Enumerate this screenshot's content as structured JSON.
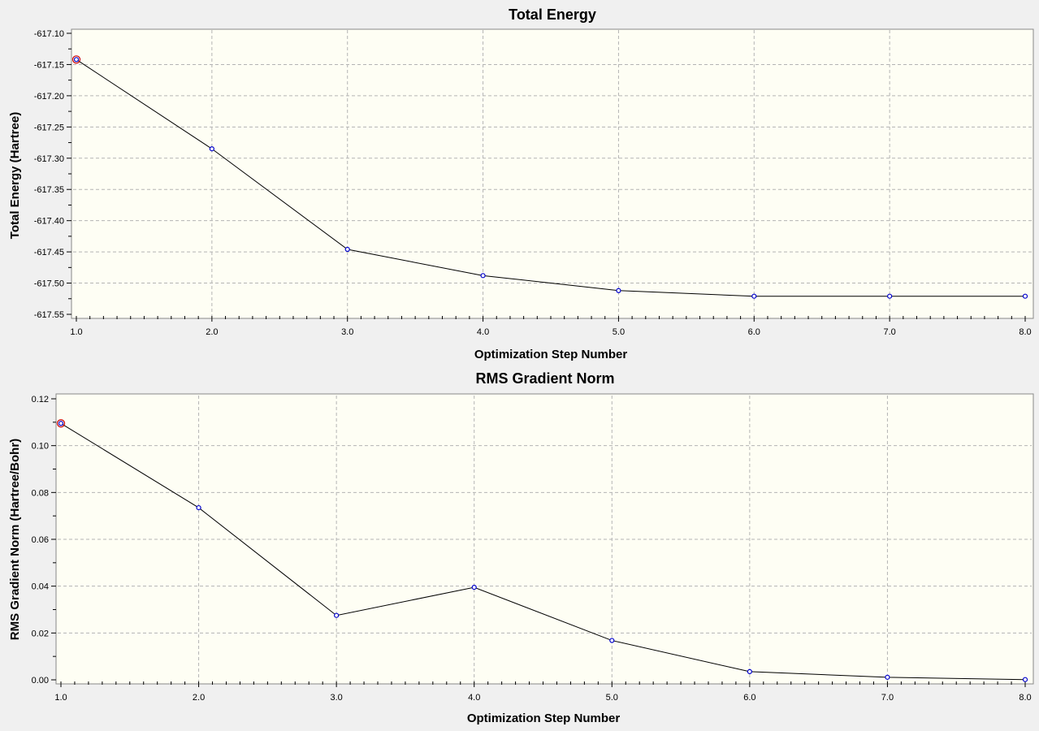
{
  "chart_data": [
    {
      "type": "line",
      "title": "Total Energy",
      "xlabel": "Optimization Step Number",
      "ylabel": "Total Energy (Hartree)",
      "xlim": [
        1.0,
        8.0
      ],
      "ylim": [
        -617.55,
        -617.1
      ],
      "xticks": [
        "1.0",
        "2.0",
        "3.0",
        "4.0",
        "5.0",
        "6.0",
        "7.0",
        "8.0"
      ],
      "yticks": [
        "-617.10",
        "-617.15",
        "-617.20",
        "-617.25",
        "-617.30",
        "-617.35",
        "-617.40",
        "-617.45",
        "-617.50",
        "-617.55"
      ],
      "grid": true,
      "highlighted_point": 1,
      "x": [
        1,
        2,
        3,
        4,
        5,
        6,
        7,
        8
      ],
      "series": [
        {
          "values": [
            -617.142,
            -617.285,
            -617.446,
            -617.488,
            -617.512,
            -617.521,
            -617.521,
            -617.521
          ]
        }
      ]
    },
    {
      "type": "line",
      "title": "RMS Gradient Norm",
      "xlabel": "Optimization Step Number",
      "ylabel": "RMS Gradient Norm (Hartree/Bohr)",
      "xlim": [
        1.0,
        8.0
      ],
      "ylim": [
        0.0,
        0.12
      ],
      "xticks": [
        "1.0",
        "2.0",
        "3.0",
        "4.0",
        "5.0",
        "6.0",
        "7.0",
        "8.0"
      ],
      "yticks": [
        "0.12",
        "0.10",
        "0.08",
        "0.06",
        "0.04",
        "0.02",
        "0.00"
      ],
      "grid": true,
      "highlighted_point": 1,
      "x": [
        1,
        2,
        3,
        4,
        5,
        6,
        7,
        8
      ],
      "series": [
        {
          "values": [
            0.1095,
            0.0735,
            0.0275,
            0.0395,
            0.0168,
            0.0035,
            0.0011,
            0.0001
          ]
        }
      ]
    }
  ],
  "colors": {
    "plot_background": "#fefef4",
    "point_outline": "#0000cc",
    "highlight_ring": "#cc0000",
    "line": "#000000"
  }
}
